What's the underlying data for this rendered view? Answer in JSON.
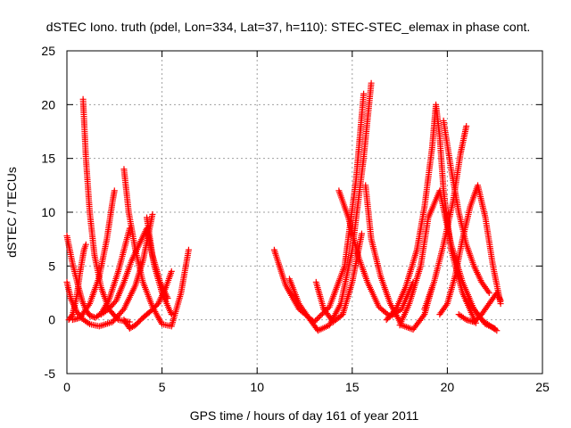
{
  "chart_data": {
    "type": "scatter",
    "title": "dSTEC Iono. truth (pdel, Lon=334, Lat=37, h=110): STEC-STEC_elemax in phase cont.",
    "xlabel": "GPS time / hours of day 161 of year 2011",
    "ylabel": "dSTEC  / TECUs",
    "xlim": [
      0,
      25
    ],
    "ylim": [
      -5,
      25
    ],
    "xticks": [
      0,
      5,
      10,
      15,
      20,
      25
    ],
    "yticks": [
      -5,
      0,
      5,
      10,
      15,
      20,
      25
    ],
    "xtick_labels": [
      "0",
      "5",
      "10",
      "15",
      "20",
      "25"
    ],
    "ytick_labels": [
      "-5",
      "0",
      "5",
      "10",
      "15",
      "20",
      "25"
    ],
    "grid": true,
    "legend": "none",
    "marker": "+",
    "color": "#ff0000",
    "series": [
      {
        "x": [
          0.0,
          0.3,
          0.6,
          0.8,
          1.0,
          1.2,
          1.5,
          1.8,
          2.2,
          2.7,
          3.3
        ],
        "y": [
          7.8,
          5.2,
          3.1,
          1.8,
          0.9,
          0.4,
          0.2,
          0.6,
          1.8,
          4.5,
          8.5
        ]
      },
      {
        "x": [
          0.0,
          0.2,
          0.5,
          0.8,
          1.2,
          1.7,
          2.4,
          3.0,
          3.6,
          4.0,
          4.5
        ],
        "y": [
          3.5,
          2.0,
          0.8,
          0.1,
          -0.4,
          -0.6,
          -0.2,
          1.0,
          3.2,
          5.5,
          9.8
        ]
      },
      {
        "x": [
          0.1,
          0.3,
          0.5,
          0.7,
          0.9,
          1.0
        ],
        "y": [
          0.0,
          0.5,
          2.0,
          4.5,
          6.5,
          7.0
        ]
      },
      {
        "x": [
          0.85,
          1.0,
          1.2,
          1.45,
          1.8,
          2.2,
          2.7,
          3.3
        ],
        "y": [
          20.5,
          15.0,
          10.0,
          6.0,
          3.0,
          1.0,
          0.0,
          -0.2
        ]
      },
      {
        "x": [
          0.3,
          0.7,
          1.2,
          1.7,
          2.1,
          2.4,
          2.5
        ],
        "y": [
          0.0,
          0.2,
          1.5,
          4.0,
          7.5,
          11.0,
          12.0
        ]
      },
      {
        "x": [
          3.0,
          3.25,
          3.6,
          4.0,
          4.5,
          5.0,
          5.5,
          6.0,
          6.4
        ],
        "y": [
          14.0,
          10.0,
          6.5,
          3.5,
          1.2,
          -0.4,
          -0.6,
          2.5,
          6.5
        ]
      },
      {
        "x": [
          1.8,
          2.2,
          2.6,
          3.0,
          3.4,
          3.8,
          4.2,
          4.6,
          5.0,
          5.5
        ],
        "y": [
          0.5,
          1.0,
          1.8,
          3.5,
          5.5,
          7.0,
          8.5,
          5.0,
          2.5,
          0.5
        ]
      },
      {
        "x": [
          3.0,
          3.3,
          3.6,
          4.0,
          4.4,
          4.8,
          5.2,
          5.5
        ],
        "y": [
          0.0,
          -0.8,
          -0.5,
          0.2,
          0.8,
          1.5,
          3.0,
          4.5
        ]
      },
      {
        "x": [
          4.2,
          4.5,
          4.9,
          5.3
        ],
        "y": [
          9.5,
          6.0,
          3.5,
          2.0
        ]
      },
      {
        "x": [
          10.9,
          11.5,
          12.2,
          13.0,
          13.8,
          14.6,
          15.2,
          15.6
        ],
        "y": [
          6.5,
          3.2,
          1.0,
          -0.2,
          1.2,
          5.0,
          13.0,
          21.0
        ]
      },
      {
        "x": [
          11.7,
          12.2,
          12.7,
          13.2,
          13.8,
          14.4,
          15.0,
          15.6,
          16.0
        ],
        "y": [
          3.8,
          1.5,
          0.2,
          -1.0,
          -0.5,
          1.5,
          6.5,
          15.0,
          22.0
        ]
      },
      {
        "x": [
          13.1,
          13.5,
          14.0,
          14.5,
          15.0,
          15.5
        ],
        "y": [
          3.5,
          1.0,
          -0.2,
          0.5,
          3.5,
          8.0
        ]
      },
      {
        "x": [
          14.3,
          14.8,
          15.3,
          15.8,
          16.4,
          17.0,
          17.6,
          18.2
        ],
        "y": [
          12.0,
          9.5,
          6.0,
          3.5,
          1.2,
          0.3,
          1.0,
          3.5
        ]
      },
      {
        "x": [
          15.7,
          16.0,
          16.5,
          17.0,
          17.6,
          18.2,
          18.8,
          19.2
        ],
        "y": [
          12.5,
          7.5,
          4.0,
          1.5,
          -0.5,
          -0.9,
          0.5,
          3.0
        ]
      },
      {
        "x": [
          16.8,
          17.3,
          17.8,
          18.4,
          18.8,
          19.2,
          19.4,
          19.6,
          19.8,
          20.2,
          20.8,
          21.5
        ],
        "y": [
          0.0,
          1.0,
          3.0,
          6.5,
          10.5,
          16.0,
          20.0,
          17.0,
          12.0,
          6.5,
          2.5,
          -0.3
        ]
      },
      {
        "x": [
          17.5,
          18.0,
          18.6,
          19.0,
          19.6,
          20.2,
          20.8,
          21.4,
          22.0,
          22.5
        ],
        "y": [
          -0.5,
          1.5,
          5.0,
          9.5,
          12.0,
          7.0,
          3.5,
          1.0,
          -0.4,
          -0.8
        ]
      },
      {
        "x": [
          18.8,
          19.3,
          19.8,
          20.3,
          20.7,
          21.0
        ],
        "y": [
          1.0,
          3.5,
          7.0,
          11.0,
          15.5,
          18.0
        ]
      },
      {
        "x": [
          19.8,
          20.2,
          20.6,
          21.0,
          21.4,
          21.8,
          22.2
        ],
        "y": [
          18.5,
          14.0,
          10.0,
          7.0,
          5.0,
          3.5,
          2.5
        ]
      },
      {
        "x": [
          19.6,
          20.0,
          20.4,
          20.8,
          21.2,
          21.6,
          22.0,
          22.4,
          22.8
        ],
        "y": [
          0.5,
          1.5,
          4.0,
          7.5,
          10.5,
          12.5,
          9.5,
          5.0,
          1.5
        ]
      },
      {
        "x": [
          20.6,
          21.0,
          21.4,
          21.8,
          22.2,
          22.6,
          22.8
        ],
        "y": [
          0.5,
          0.0,
          -0.2,
          0.5,
          1.5,
          2.5,
          1.8
        ]
      },
      {
        "x": [
          21.0,
          21.4,
          21.8,
          22.2,
          22.6
        ],
        "y": [
          1.8,
          1.0,
          0.0,
          -0.5,
          -1.0
        ]
      }
    ]
  }
}
